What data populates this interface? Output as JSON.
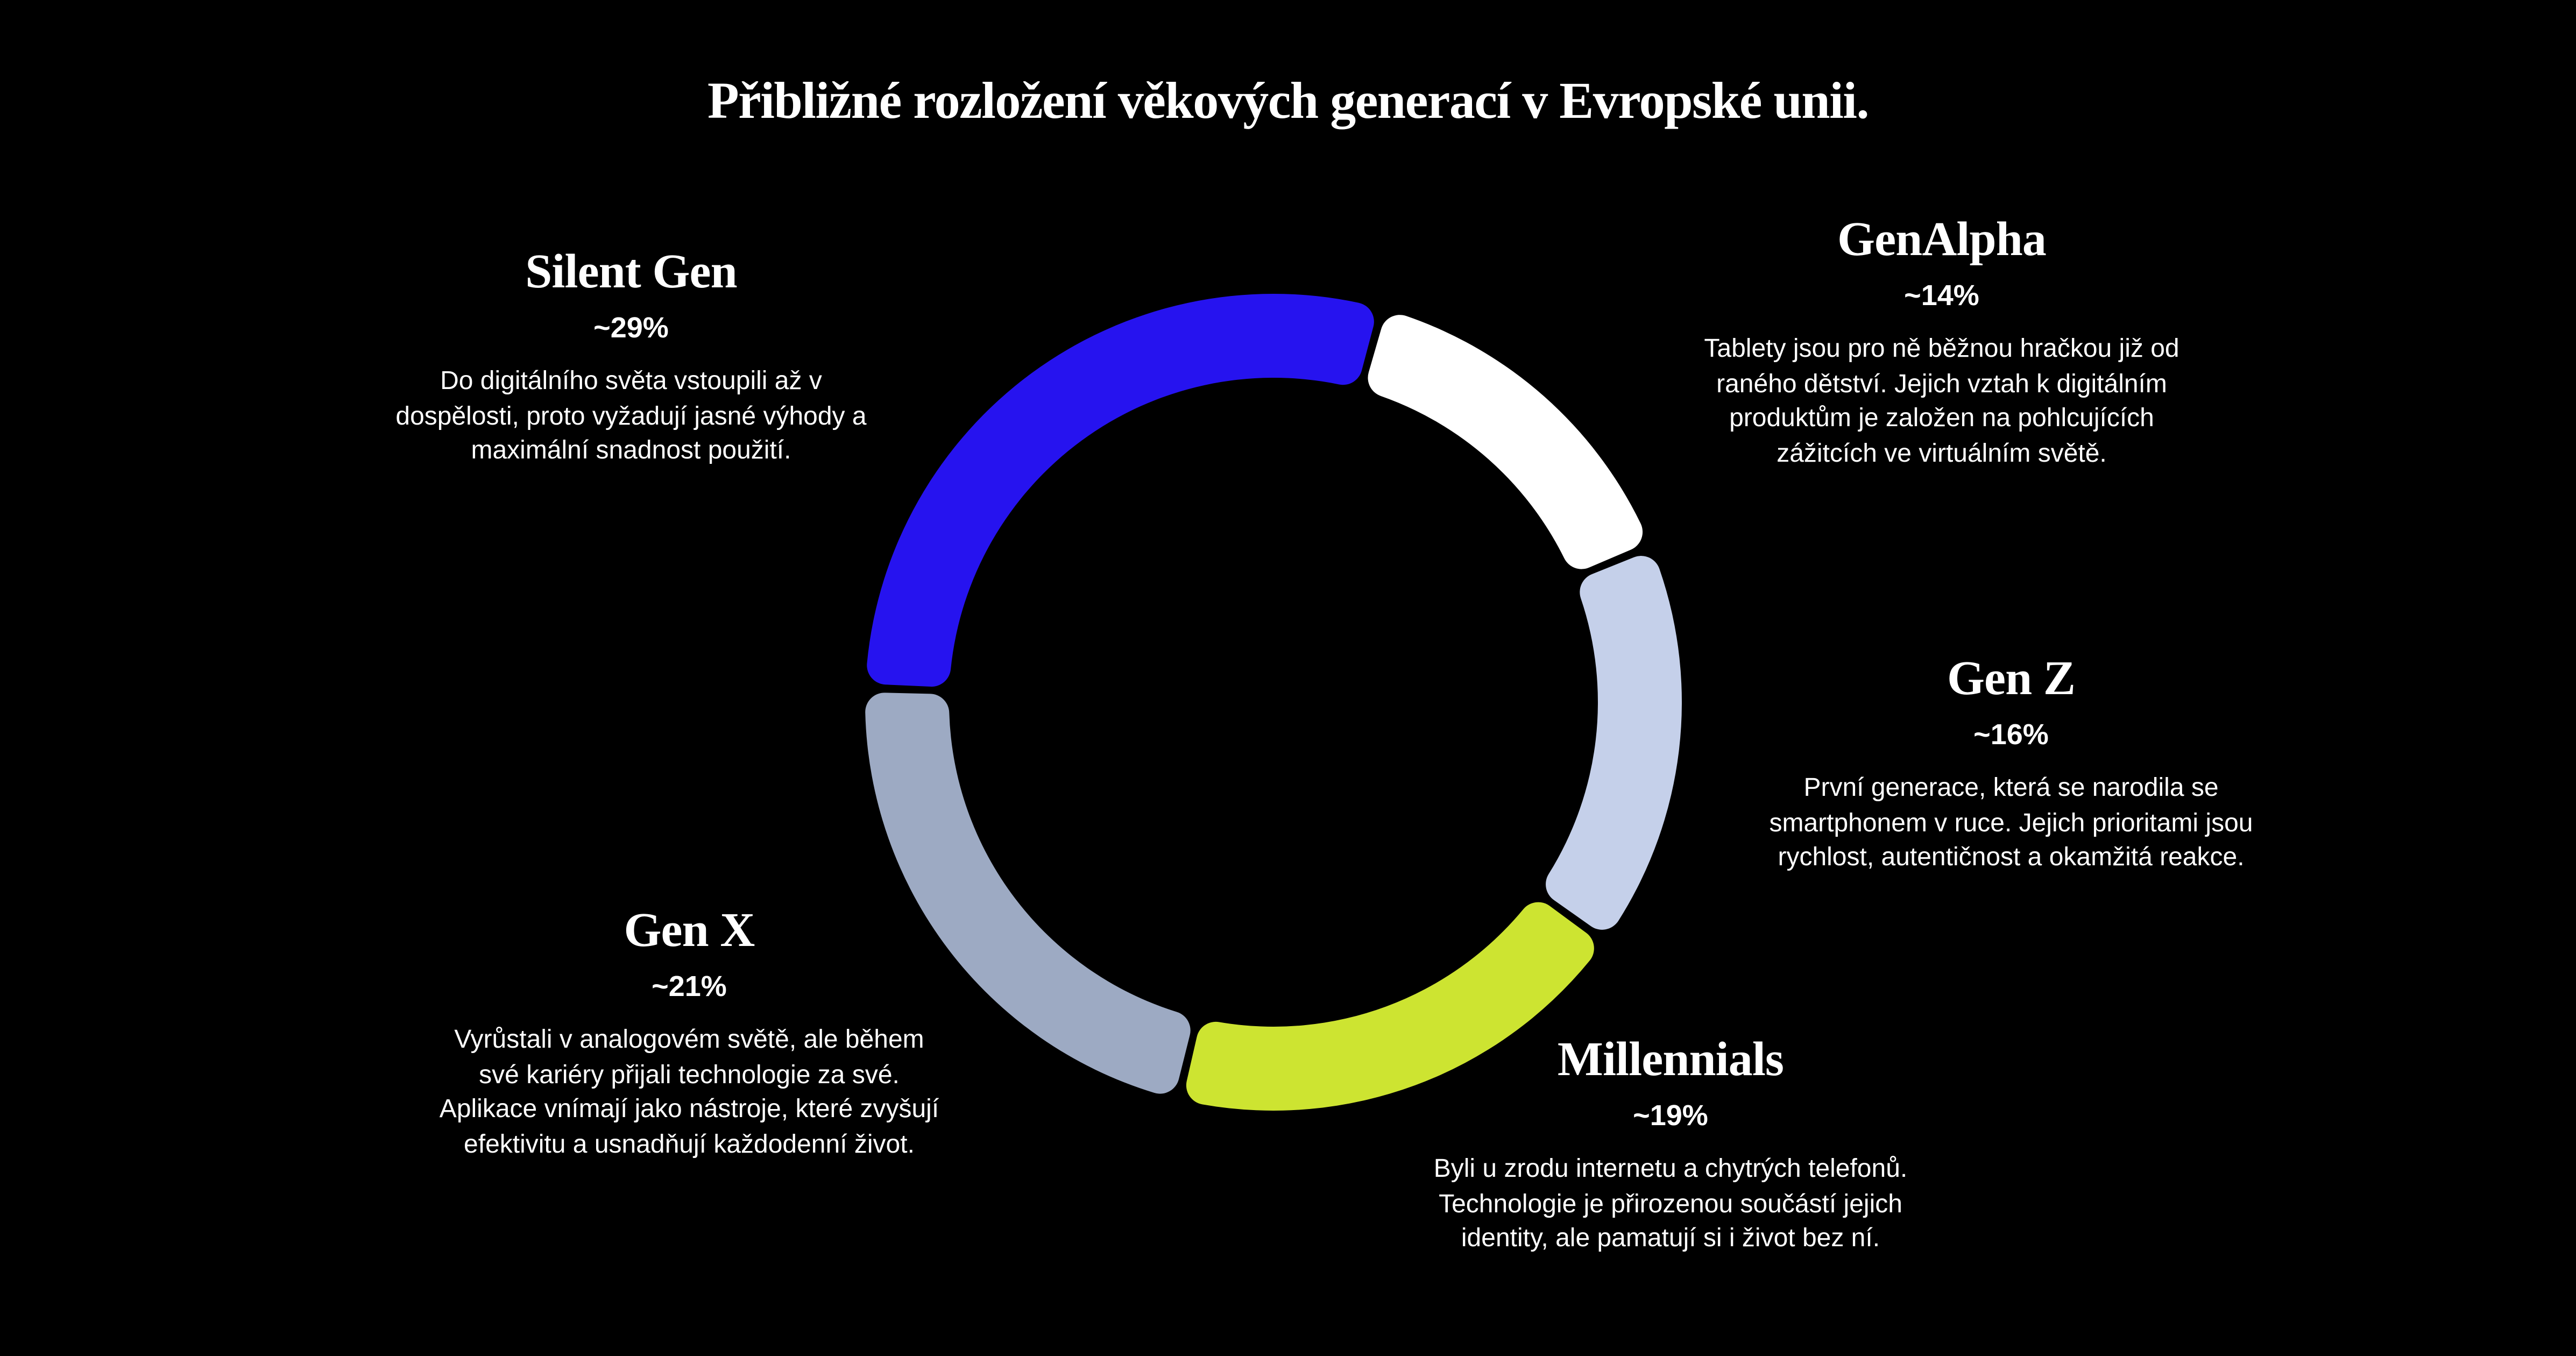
{
  "page": {
    "title": "Přibližné rozložení věkových generací v Evropské unii."
  },
  "chart_data": {
    "type": "pie",
    "variant": "donut",
    "title": "Přibližné rozložení věkových generací v Evropské unii.",
    "legend_position": "labels-around-donut",
    "background_color": "#000000",
    "text_color": "#ffffff",
    "categories": [
      "Silent Gen",
      "GenAlpha",
      "Gen Z",
      "Millennials",
      "Gen X"
    ],
    "values": [
      29,
      14,
      16,
      19,
      21
    ],
    "value_labels": [
      "~29%",
      "~14%",
      "~16%",
      "~19%",
      "~21%"
    ],
    "segments": [
      {
        "name": "silent-gen",
        "label": "Silent Gen",
        "pct": 29,
        "color": "#2613ef",
        "start_deg": 272.6,
        "end_deg": 374.9
      },
      {
        "name": "gen-alpha",
        "label": "GenAlpha",
        "pct": 14,
        "color": "#ffffff",
        "start_deg": 16.1,
        "end_deg": 66.9
      },
      {
        "name": "gen-z",
        "label": "Gen Z",
        "pct": 16,
        "color": "#c5d0ea",
        "start_deg": 68.1,
        "end_deg": 125.2
      },
      {
        "name": "millennials",
        "label": "Millennials",
        "pct": 19,
        "color": "#cde431",
        "start_deg": 126.4,
        "end_deg": 192.9
      },
      {
        "name": "gen-x",
        "label": "Gen X",
        "pct": 21,
        "color": "#9daac3",
        "start_deg": 194.1,
        "end_deg": 271.4
      }
    ]
  },
  "sections": {
    "silent_gen": {
      "title": "Silent Gen",
      "pct": "~29%",
      "body": "Do digitálního světa vstoupili až v\ndospělosti, proto vyžadují jasné výhody a\nmaximální snadnost použití."
    },
    "gen_alpha": {
      "title": "GenAlpha",
      "pct": "~14%",
      "body": "Tablety jsou pro ně běžnou hračkou již od\nraného dětství. Jejich vztah k digitálním\nproduktům je založen na pohlcujících\nzážitcích ve virtuálním světě."
    },
    "gen_z": {
      "title": "Gen Z",
      "pct": "~16%",
      "body": "První generace, která se narodila se\nsmartphonem v ruce. Jejich prioritami jsou\nrychlost, autentičnost a okamžitá reakce."
    },
    "millennials": {
      "title": "Millennials",
      "pct": "~19%",
      "body": "Byli u zrodu internetu a chytrých telefonů.\nTechnologie je přirozenou součástí jejich\nidentity, ale pamatují si i život bez ní."
    },
    "gen_x": {
      "title": "Gen X",
      "pct": "~21%",
      "body": "Vyrůstali v analogovém světě, ale během\nsvé kariéry přijali technologie za své.\nAplikace vnímají jako nástroje, které zvyšují\nefektivitu a usnadňují každodenní život."
    }
  }
}
